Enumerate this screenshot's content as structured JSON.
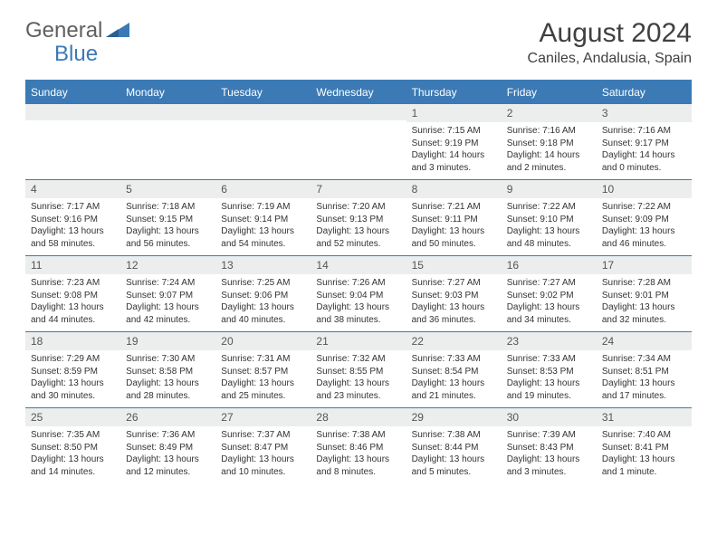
{
  "brand": {
    "name1": "General",
    "name2": "Blue"
  },
  "title": {
    "month": "August 2024",
    "location": "Caniles, Andalusia, Spain"
  },
  "colors": {
    "accent": "#3b7ab5",
    "header_bg": "#3b7ab5",
    "daynum_bg": "#eceded"
  },
  "day_labels": [
    "Sunday",
    "Monday",
    "Tuesday",
    "Wednesday",
    "Thursday",
    "Friday",
    "Saturday"
  ],
  "weeks": [
    [
      {
        "n": "",
        "r": "",
        "s": "",
        "d": ""
      },
      {
        "n": "",
        "r": "",
        "s": "",
        "d": ""
      },
      {
        "n": "",
        "r": "",
        "s": "",
        "d": ""
      },
      {
        "n": "",
        "r": "",
        "s": "",
        "d": ""
      },
      {
        "n": "1",
        "r": "Sunrise: 7:15 AM",
        "s": "Sunset: 9:19 PM",
        "d": "Daylight: 14 hours and 3 minutes."
      },
      {
        "n": "2",
        "r": "Sunrise: 7:16 AM",
        "s": "Sunset: 9:18 PM",
        "d": "Daylight: 14 hours and 2 minutes."
      },
      {
        "n": "3",
        "r": "Sunrise: 7:16 AM",
        "s": "Sunset: 9:17 PM",
        "d": "Daylight: 14 hours and 0 minutes."
      }
    ],
    [
      {
        "n": "4",
        "r": "Sunrise: 7:17 AM",
        "s": "Sunset: 9:16 PM",
        "d": "Daylight: 13 hours and 58 minutes."
      },
      {
        "n": "5",
        "r": "Sunrise: 7:18 AM",
        "s": "Sunset: 9:15 PM",
        "d": "Daylight: 13 hours and 56 minutes."
      },
      {
        "n": "6",
        "r": "Sunrise: 7:19 AM",
        "s": "Sunset: 9:14 PM",
        "d": "Daylight: 13 hours and 54 minutes."
      },
      {
        "n": "7",
        "r": "Sunrise: 7:20 AM",
        "s": "Sunset: 9:13 PM",
        "d": "Daylight: 13 hours and 52 minutes."
      },
      {
        "n": "8",
        "r": "Sunrise: 7:21 AM",
        "s": "Sunset: 9:11 PM",
        "d": "Daylight: 13 hours and 50 minutes."
      },
      {
        "n": "9",
        "r": "Sunrise: 7:22 AM",
        "s": "Sunset: 9:10 PM",
        "d": "Daylight: 13 hours and 48 minutes."
      },
      {
        "n": "10",
        "r": "Sunrise: 7:22 AM",
        "s": "Sunset: 9:09 PM",
        "d": "Daylight: 13 hours and 46 minutes."
      }
    ],
    [
      {
        "n": "11",
        "r": "Sunrise: 7:23 AM",
        "s": "Sunset: 9:08 PM",
        "d": "Daylight: 13 hours and 44 minutes."
      },
      {
        "n": "12",
        "r": "Sunrise: 7:24 AM",
        "s": "Sunset: 9:07 PM",
        "d": "Daylight: 13 hours and 42 minutes."
      },
      {
        "n": "13",
        "r": "Sunrise: 7:25 AM",
        "s": "Sunset: 9:06 PM",
        "d": "Daylight: 13 hours and 40 minutes."
      },
      {
        "n": "14",
        "r": "Sunrise: 7:26 AM",
        "s": "Sunset: 9:04 PM",
        "d": "Daylight: 13 hours and 38 minutes."
      },
      {
        "n": "15",
        "r": "Sunrise: 7:27 AM",
        "s": "Sunset: 9:03 PM",
        "d": "Daylight: 13 hours and 36 minutes."
      },
      {
        "n": "16",
        "r": "Sunrise: 7:27 AM",
        "s": "Sunset: 9:02 PM",
        "d": "Daylight: 13 hours and 34 minutes."
      },
      {
        "n": "17",
        "r": "Sunrise: 7:28 AM",
        "s": "Sunset: 9:01 PM",
        "d": "Daylight: 13 hours and 32 minutes."
      }
    ],
    [
      {
        "n": "18",
        "r": "Sunrise: 7:29 AM",
        "s": "Sunset: 8:59 PM",
        "d": "Daylight: 13 hours and 30 minutes."
      },
      {
        "n": "19",
        "r": "Sunrise: 7:30 AM",
        "s": "Sunset: 8:58 PM",
        "d": "Daylight: 13 hours and 28 minutes."
      },
      {
        "n": "20",
        "r": "Sunrise: 7:31 AM",
        "s": "Sunset: 8:57 PM",
        "d": "Daylight: 13 hours and 25 minutes."
      },
      {
        "n": "21",
        "r": "Sunrise: 7:32 AM",
        "s": "Sunset: 8:55 PM",
        "d": "Daylight: 13 hours and 23 minutes."
      },
      {
        "n": "22",
        "r": "Sunrise: 7:33 AM",
        "s": "Sunset: 8:54 PM",
        "d": "Daylight: 13 hours and 21 minutes."
      },
      {
        "n": "23",
        "r": "Sunrise: 7:33 AM",
        "s": "Sunset: 8:53 PM",
        "d": "Daylight: 13 hours and 19 minutes."
      },
      {
        "n": "24",
        "r": "Sunrise: 7:34 AM",
        "s": "Sunset: 8:51 PM",
        "d": "Daylight: 13 hours and 17 minutes."
      }
    ],
    [
      {
        "n": "25",
        "r": "Sunrise: 7:35 AM",
        "s": "Sunset: 8:50 PM",
        "d": "Daylight: 13 hours and 14 minutes."
      },
      {
        "n": "26",
        "r": "Sunrise: 7:36 AM",
        "s": "Sunset: 8:49 PM",
        "d": "Daylight: 13 hours and 12 minutes."
      },
      {
        "n": "27",
        "r": "Sunrise: 7:37 AM",
        "s": "Sunset: 8:47 PM",
        "d": "Daylight: 13 hours and 10 minutes."
      },
      {
        "n": "28",
        "r": "Sunrise: 7:38 AM",
        "s": "Sunset: 8:46 PM",
        "d": "Daylight: 13 hours and 8 minutes."
      },
      {
        "n": "29",
        "r": "Sunrise: 7:38 AM",
        "s": "Sunset: 8:44 PM",
        "d": "Daylight: 13 hours and 5 minutes."
      },
      {
        "n": "30",
        "r": "Sunrise: 7:39 AM",
        "s": "Sunset: 8:43 PM",
        "d": "Daylight: 13 hours and 3 minutes."
      },
      {
        "n": "31",
        "r": "Sunrise: 7:40 AM",
        "s": "Sunset: 8:41 PM",
        "d": "Daylight: 13 hours and 1 minute."
      }
    ]
  ]
}
